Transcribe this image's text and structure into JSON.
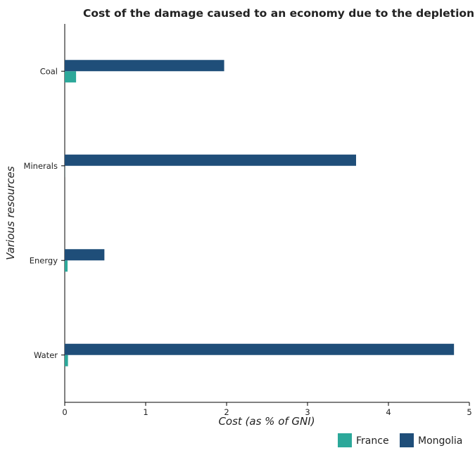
{
  "chart_data": {
    "type": "bar",
    "orientation": "horizontal",
    "title": "Cost of the damage caused to an economy due to the depletion of var",
    "xlabel": "Cost (as % of GNI)",
    "ylabel": "Various resources",
    "categories": [
      "Coal",
      "Minerals",
      "Energy",
      "Water"
    ],
    "xlim": [
      0,
      5
    ],
    "xticks": [
      "0",
      "1",
      "2",
      "3",
      "4",
      "5"
    ],
    "series": [
      {
        "name": "France",
        "color": "#2ca89a",
        "values": [
          0.14,
          0.001,
          0.035,
          0.04
        ]
      },
      {
        "name": "Mongolia",
        "color": "#1f4e79",
        "values": [
          1.97,
          3.6,
          0.49,
          4.81
        ]
      }
    ],
    "legend_position": "bottom-right",
    "grid": false
  }
}
